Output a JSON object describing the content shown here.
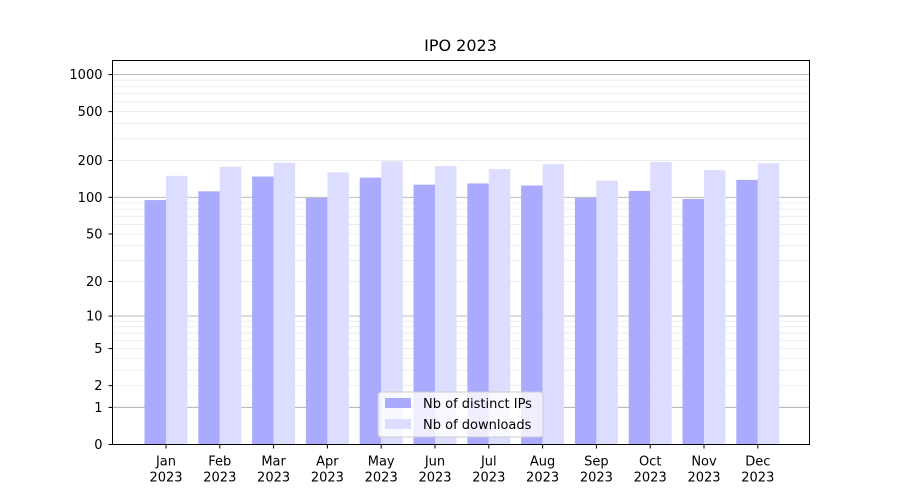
{
  "chart_data": {
    "type": "bar",
    "title": "IPO 2023",
    "xlabel": "",
    "ylabel": "",
    "yscale": "symlog",
    "ylim": [
      0,
      1300
    ],
    "yticks": [
      {
        "value": 0,
        "label": "0"
      },
      {
        "value": 1,
        "label": "1"
      },
      {
        "value": 2,
        "label": "2"
      },
      {
        "value": 5,
        "label": "5"
      },
      {
        "value": 10,
        "label": "10"
      },
      {
        "value": 20,
        "label": "20"
      },
      {
        "value": 50,
        "label": "50"
      },
      {
        "value": 100,
        "label": "100"
      },
      {
        "value": 200,
        "label": "200"
      },
      {
        "value": 500,
        "label": "500"
      },
      {
        "value": 1000,
        "label": "1000"
      }
    ],
    "categories": [
      [
        "Jan",
        "2023"
      ],
      [
        "Feb",
        "2023"
      ],
      [
        "Mar",
        "2023"
      ],
      [
        "Apr",
        "2023"
      ],
      [
        "May",
        "2023"
      ],
      [
        "Jun",
        "2023"
      ],
      [
        "Jul",
        "2023"
      ],
      [
        "Aug",
        "2023"
      ],
      [
        "Sep",
        "2023"
      ],
      [
        "Oct",
        "2023"
      ],
      [
        "Nov",
        "2023"
      ],
      [
        "Dec",
        "2023"
      ]
    ],
    "series": [
      {
        "name": "Nb of distinct IPs",
        "color": "#aaaaff",
        "values": [
          95,
          112,
          148,
          99,
          145,
          127,
          130,
          125,
          99,
          113,
          97,
          139
        ]
      },
      {
        "name": "Nb of downloads",
        "color": "#ddddff",
        "values": [
          150,
          178,
          192,
          160,
          197,
          180,
          170,
          187,
          137,
          195,
          167,
          190
        ]
      }
    ],
    "grid": true,
    "legend_position": "bottom-center"
  }
}
